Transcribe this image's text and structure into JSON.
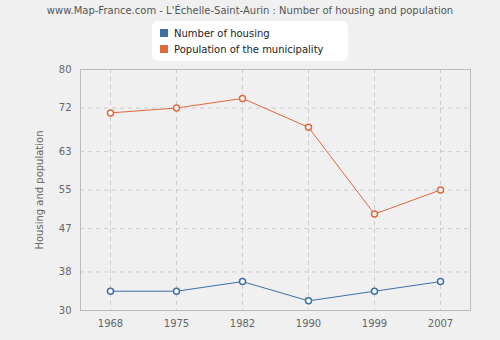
{
  "chart_data": {
    "type": "line",
    "title": "www.Map-France.com - L'Échelle-Saint-Aurin : Number of housing and population",
    "y_label": "Housing and population",
    "categories": [
      "1968",
      "1975",
      "1982",
      "1990",
      "1999",
      "2007"
    ],
    "series": [
      {
        "name": "Number of housing",
        "color": "#3e6fa8",
        "marker": "circle",
        "values": [
          34,
          34,
          36,
          32,
          34,
          36
        ]
      },
      {
        "name": "Population of the municipality",
        "color": "#e0693e",
        "marker": "circle",
        "values": [
          71,
          72,
          74,
          68,
          50,
          55
        ]
      }
    ],
    "ylim": [
      30,
      80
    ],
    "yticks": [
      30,
      38,
      47,
      55,
      63,
      72,
      80
    ],
    "grid": true,
    "legend": "top"
  }
}
